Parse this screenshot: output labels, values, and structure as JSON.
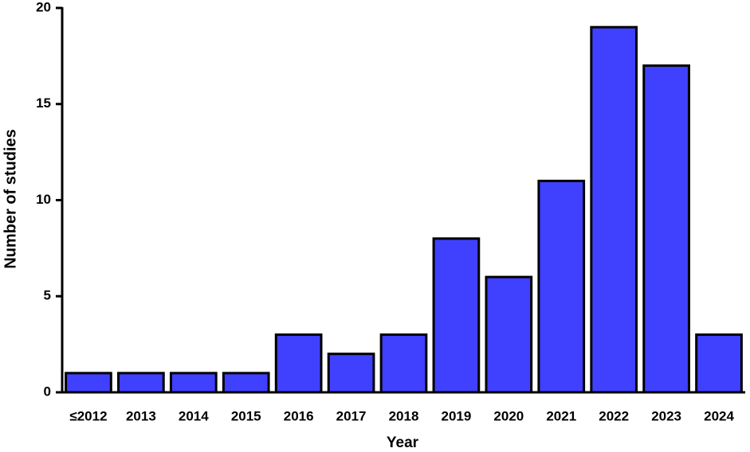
{
  "chart_data": {
    "type": "bar",
    "xlabel": "Year",
    "ylabel": "Number of studies",
    "categories": [
      "≤2012",
      "2013",
      "2014",
      "2015",
      "2016",
      "2017",
      "2018",
      "2019",
      "2020",
      "2021",
      "2022",
      "2023",
      "2024"
    ],
    "values": [
      1,
      1,
      1,
      1,
      3,
      2,
      3,
      8,
      6,
      11,
      19,
      17,
      3
    ],
    "color": "#4040ff",
    "ylim": [
      0,
      20
    ],
    "yticks": [
      0,
      5,
      10,
      15,
      20
    ]
  }
}
